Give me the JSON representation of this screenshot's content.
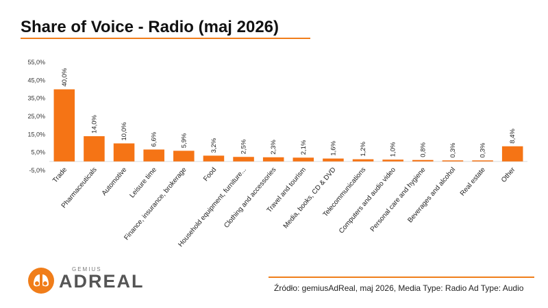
{
  "header": {
    "title": "Share of Voice - Radio (maj 2026)"
  },
  "chart_data": {
    "type": "bar",
    "title": "Share of Voice - Radio (maj 2026)",
    "categories": [
      "Trade",
      "Pharmaceuticals",
      "Automotive",
      "Leisure time",
      "Finance, insurance, brokerage",
      "Food",
      "Household equipment, furniture...",
      "Clothing and accessories",
      "Travel and tourism",
      "Media, books, CD & DVD",
      "Telecommunications",
      "Computers and audio video",
      "Personal care and hygiene",
      "Beverages and alcohol",
      "Real estate",
      "Other"
    ],
    "values": [
      40.0,
      14.0,
      10.0,
      6.6,
      5.9,
      3.2,
      2.5,
      2.3,
      2.1,
      1.6,
      1.2,
      1.0,
      0.8,
      0.3,
      0.3,
      8.4
    ],
    "value_labels": [
      "40,0%",
      "14,0%",
      "10,0%",
      "6,6%",
      "5,9%",
      "3,2%",
      "2,5%",
      "2,3%",
      "2,1%",
      "1,6%",
      "1,2%",
      "1,0%",
      "0,8%",
      "0,3%",
      "0,3%",
      "8,4%"
    ],
    "y_ticks": [
      -5,
      5,
      15,
      25,
      35,
      45,
      55
    ],
    "y_tick_labels": [
      "-5,0%",
      "5,0%",
      "15,0%",
      "25,0%",
      "35,0%",
      "45,0%",
      "55,0%"
    ],
    "ylim": [
      -5,
      55
    ],
    "grid": false,
    "legend": "none",
    "bar_color": "#f57415",
    "xlabel": "",
    "ylabel": ""
  },
  "footer": {
    "source": "Źródło: gemiusAdReal, maj 2026, Media Type: Radio Ad Type: Audio",
    "logo_small": "GEMIUS",
    "logo_big": "ADREAL"
  },
  "colors": {
    "accent": "#f07d19",
    "bar": "#f57415",
    "title": "#111111"
  }
}
